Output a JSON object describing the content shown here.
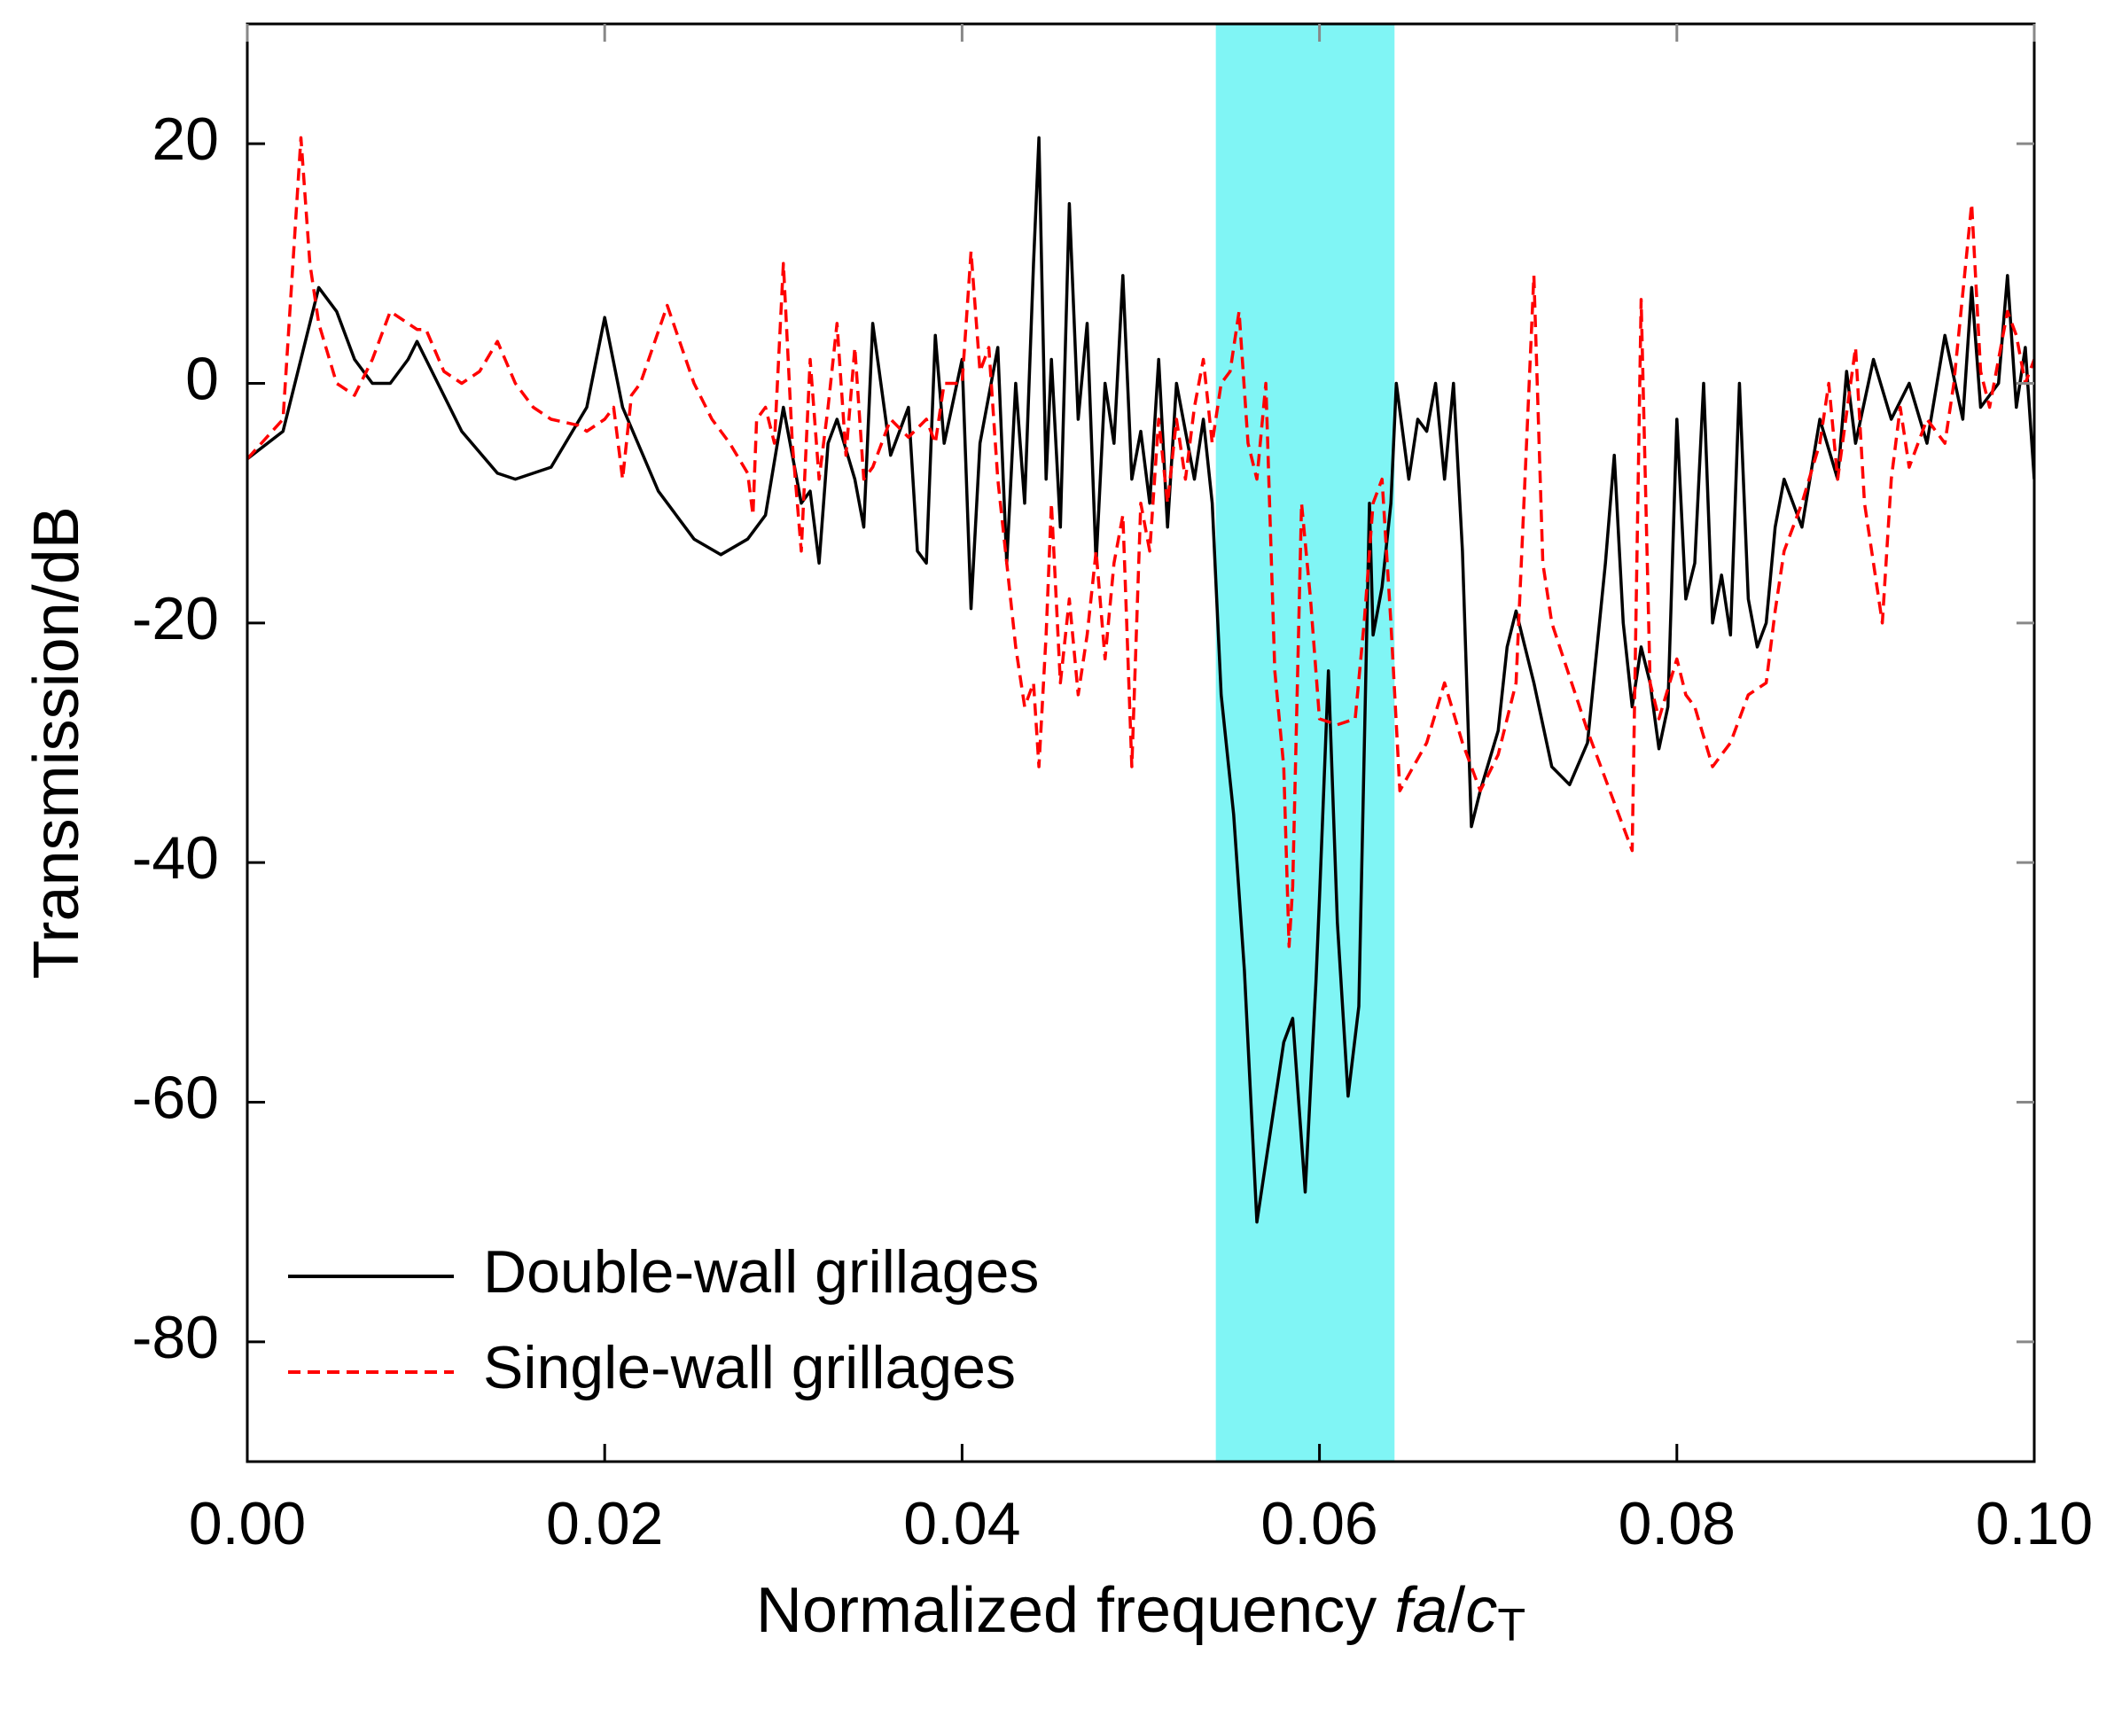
{
  "chart_data": {
    "type": "line",
    "ylabel": "Transmission/dB",
    "xlabel_parts": [
      {
        "text": "Normalized frequency "
      },
      {
        "text": "fa",
        "style": "italic"
      },
      {
        "text": "/"
      },
      {
        "text": "c",
        "style": "italic"
      },
      {
        "text": "T",
        "style": "subscript"
      }
    ],
    "xlim": [
      0,
      0.1
    ],
    "ylim": [
      -90,
      30
    ],
    "xticks": [
      {
        "value": 0,
        "label": "0.00"
      },
      {
        "value": 0.02,
        "label": "0.02"
      },
      {
        "value": 0.04,
        "label": "0.04"
      },
      {
        "value": 0.06,
        "label": "0.06"
      },
      {
        "value": 0.08,
        "label": "0.08"
      },
      {
        "value": 0.1,
        "label": "0.10"
      }
    ],
    "yticks": [
      -80,
      -60,
      -40,
      -20,
      0,
      20
    ],
    "grid": false,
    "legend": "lower left",
    "shaded_region": [
      0.0542,
      0.0642
    ],
    "shaded_color": "#80f5f5",
    "series": [
      {
        "name": "Double-wall grillages",
        "color": "#000000",
        "dash": "solid",
        "x": [
          0,
          0.002,
          0.004,
          0.005,
          0.006,
          0.007,
          0.008,
          0.009,
          0.0095,
          0.01,
          0.012,
          0.014,
          0.015,
          0.017,
          0.019,
          0.02,
          0.021,
          0.023,
          0.025,
          0.0265,
          0.028,
          0.029,
          0.03,
          0.031,
          0.0315,
          0.032,
          0.0325,
          0.033,
          0.034,
          0.0345,
          0.035,
          0.036,
          0.037,
          0.0375,
          0.038,
          0.0385,
          0.039,
          0.04,
          0.0405,
          0.041,
          0.042,
          0.0425,
          0.043,
          0.0435,
          0.044,
          0.0443,
          0.0447,
          0.045,
          0.0455,
          0.046,
          0.0465,
          0.047,
          0.0475,
          0.048,
          0.0485,
          0.049,
          0.0495,
          0.05,
          0.0505,
          0.051,
          0.0515,
          0.052,
          0.053,
          0.0535,
          0.054,
          0.0545,
          0.0552,
          0.0558,
          0.0565,
          0.058,
          0.0585,
          0.0592,
          0.0598,
          0.06,
          0.0605,
          0.061,
          0.0616,
          0.0622,
          0.0628,
          0.063,
          0.0635,
          0.064,
          0.0643,
          0.065,
          0.0655,
          0.066,
          0.0665,
          0.067,
          0.0675,
          0.068,
          0.0685,
          0.069,
          0.07,
          0.0705,
          0.071,
          0.072,
          0.073,
          0.074,
          0.075,
          0.076,
          0.0765,
          0.077,
          0.0775,
          0.078,
          0.0785,
          0.079,
          0.0795,
          0.08,
          0.0805,
          0.081,
          0.0815,
          0.082,
          0.0825,
          0.083,
          0.0835,
          0.084,
          0.0845,
          0.085,
          0.0855,
          0.086,
          0.087,
          0.088,
          0.089,
          0.0895,
          0.09,
          0.091,
          0.092,
          0.093,
          0.094,
          0.095,
          0.096,
          0.0965,
          0.097,
          0.098,
          0.0985,
          0.099,
          0.0995,
          0.1
        ],
        "values": [
          -6.3,
          -4,
          8,
          6,
          2,
          0,
          0,
          2,
          3.5,
          2,
          -4,
          -7.5,
          -8,
          -7,
          -2,
          5.5,
          -2,
          -9,
          -13,
          -14.3,
          -13,
          -11,
          -2,
          -10,
          -9,
          -15,
          -5,
          -3,
          -8,
          -12,
          5,
          -6,
          -2,
          -14,
          -15,
          4,
          -5,
          2,
          -18.8,
          -5,
          3,
          -15,
          0,
          -10,
          10,
          20.5,
          -8,
          2,
          -12,
          15,
          -3,
          5,
          -15,
          0,
          -5,
          9,
          -8,
          -4,
          -10,
          2,
          -12,
          0,
          -8,
          -3,
          -10,
          -26,
          -36,
          -49,
          -70,
          -55,
          -53,
          -67.5,
          -50,
          -43,
          -24,
          -45,
          -59.5,
          -52,
          -10,
          -21,
          -17,
          -10,
          0,
          -8,
          -3,
          -4,
          0,
          -8,
          0,
          -14,
          -37,
          -34,
          -29,
          -22,
          -19,
          -25,
          -32,
          -33.5,
          -30,
          -15,
          -6,
          -20,
          -27,
          -22,
          -25,
          -30.5,
          -27,
          -3,
          -18,
          -15,
          0,
          -20,
          -16,
          -21,
          0,
          -18,
          -22,
          -20,
          -12,
          -8,
          -12,
          -3,
          -8,
          1,
          -5,
          2,
          -3,
          0,
          -5,
          4,
          -3,
          8,
          -2,
          0,
          9,
          -2,
          3,
          -8
        ]
      },
      {
        "name": "Single-wall grillages",
        "color": "#ff0000",
        "dash": "dashed",
        "x": [
          0,
          0.002,
          0.003,
          0.0035,
          0.004,
          0.005,
          0.006,
          0.007,
          0.008,
          0.009,
          0.0095,
          0.01,
          0.011,
          0.012,
          0.013,
          0.014,
          0.015,
          0.016,
          0.017,
          0.0185,
          0.019,
          0.02,
          0.0205,
          0.021,
          0.0215,
          0.022,
          0.0235,
          0.025,
          0.026,
          0.027,
          0.028,
          0.0283,
          0.0285,
          0.029,
          0.0295,
          0.03,
          0.0305,
          0.031,
          0.0315,
          0.032,
          0.0325,
          0.033,
          0.0335,
          0.034,
          0.0345,
          0.035,
          0.036,
          0.037,
          0.038,
          0.0385,
          0.039,
          0.04,
          0.0405,
          0.041,
          0.0415,
          0.042,
          0.0425,
          0.043,
          0.0435,
          0.044,
          0.0443,
          0.0447,
          0.045,
          0.0455,
          0.046,
          0.0465,
          0.047,
          0.0475,
          0.048,
          0.0485,
          0.049,
          0.0495,
          0.05,
          0.0505,
          0.051,
          0.0515,
          0.052,
          0.0525,
          0.053,
          0.0535,
          0.054,
          0.0545,
          0.055,
          0.0555,
          0.056,
          0.0565,
          0.057,
          0.0575,
          0.058,
          0.0583,
          0.0585,
          0.059,
          0.0595,
          0.06,
          0.061,
          0.062,
          0.0625,
          0.063,
          0.0635,
          0.064,
          0.0645,
          0.066,
          0.067,
          0.068,
          0.069,
          0.07,
          0.071,
          0.072,
          0.0725,
          0.073,
          0.075,
          0.0765,
          0.0775,
          0.078,
          0.0785,
          0.079,
          0.08,
          0.0805,
          0.081,
          0.082,
          0.083,
          0.084,
          0.085,
          0.0855,
          0.086,
          0.087,
          0.088,
          0.0885,
          0.089,
          0.09,
          0.0905,
          0.091,
          0.0915,
          0.092,
          0.0925,
          0.093,
          0.094,
          0.095,
          0.0955,
          0.0965,
          0.097,
          0.0975,
          0.098,
          0.0985,
          0.099,
          0.0995,
          0.1
        ],
        "values": [
          -6.3,
          -3,
          20.5,
          10,
          5,
          0,
          -1,
          2,
          6,
          5,
          4.5,
          4.5,
          1,
          0,
          1,
          3.5,
          0,
          -2,
          -3,
          -3.5,
          -4,
          -3,
          -2,
          -8,
          -1,
          0,
          6.5,
          0,
          -3,
          -5,
          -7.5,
          -11,
          -3,
          -2,
          -5,
          10,
          -5,
          -14,
          2,
          -8,
          -2,
          5,
          -6,
          3,
          -8,
          -7,
          -3,
          -4.5,
          -3,
          -5,
          0,
          0,
          11,
          1,
          3,
          -8,
          -15,
          -22,
          -27,
          -25,
          -32,
          -21,
          -10,
          -25,
          -18,
          -26,
          -21,
          -14,
          -23,
          -15,
          -11,
          -32,
          -10,
          -14,
          -3,
          -10,
          -3,
          -8,
          -2,
          2,
          -5,
          0,
          1,
          6,
          -5,
          -8,
          0,
          -24,
          -32,
          -47,
          -42,
          -10,
          -18,
          -28,
          -28.5,
          -28,
          -20,
          -10,
          -8,
          -20,
          -34,
          -30,
          -25,
          -30,
          -34,
          -31,
          -25,
          9,
          -15,
          -20,
          -29,
          -35,
          -39,
          7,
          -25,
          -28,
          -23,
          -26,
          -27,
          -32,
          -30,
          -26,
          -25,
          -19,
          -14,
          -10,
          -5,
          0,
          -8,
          3,
          -10,
          -15,
          -20,
          -8,
          -2,
          -7,
          -3,
          -5,
          0,
          15,
          1,
          -2,
          2,
          6,
          4,
          0,
          2
        ]
      }
    ]
  }
}
